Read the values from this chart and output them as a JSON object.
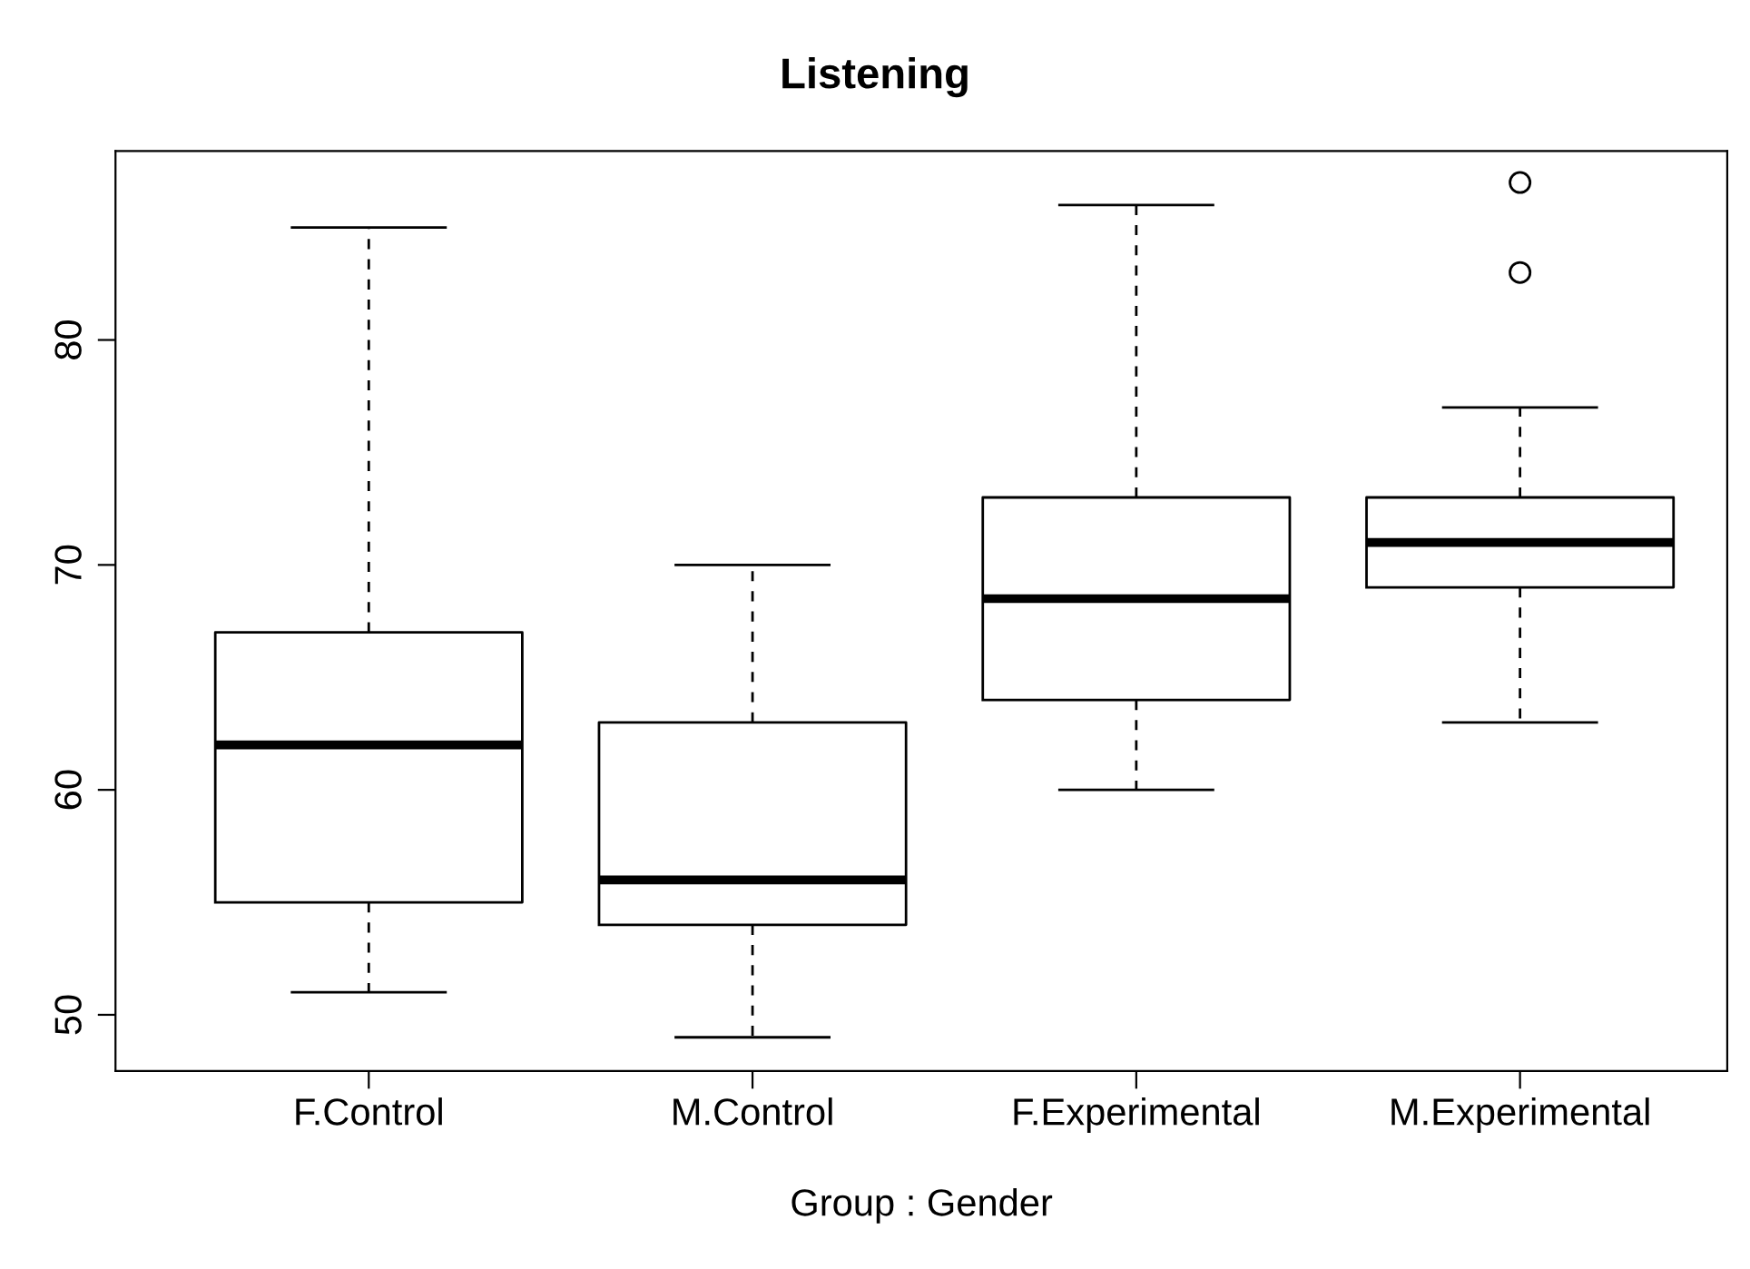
{
  "chart_data": {
    "type": "box",
    "title": "Listening",
    "xlabel": "Group : Gender",
    "categories": [
      "F.Control",
      "M.Control",
      "F.Experimental",
      "M.Experimental"
    ],
    "boxes": [
      {
        "low": 51,
        "q1": 55,
        "median": 62,
        "q3": 67,
        "high": 85
      },
      {
        "low": 49,
        "q1": 54,
        "median": 56,
        "q3": 63,
        "high": 70
      },
      {
        "low": 60,
        "q1": 64,
        "median": 68.5,
        "q3": 73,
        "high": 86
      },
      {
        "low": 63,
        "q1": 69,
        "median": 71,
        "q3": 73,
        "high": 77,
        "outliers": [
          83,
          87
        ]
      }
    ],
    "color": "#000000",
    "ylim": [
      47.5,
      88.4
    ],
    "yticks": [
      50,
      60,
      70,
      80
    ],
    "grid": false
  }
}
